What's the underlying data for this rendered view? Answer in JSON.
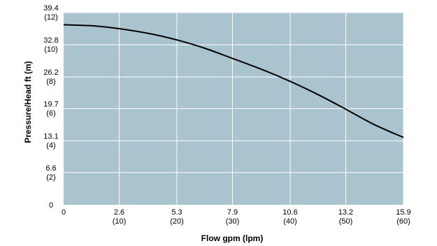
{
  "chart_data": {
    "type": "line",
    "title": "",
    "xlabel": "Flow gpm (lpm)",
    "ylabel": "Pressure/Head ft (m)",
    "x_ticks": [
      {
        "value": 0,
        "label": "0",
        "sub": ""
      },
      {
        "value": 2.6,
        "label": "2.6",
        "sub": "(10)"
      },
      {
        "value": 5.3,
        "label": "5.3",
        "sub": "(20)"
      },
      {
        "value": 7.9,
        "label": "7.9",
        "sub": "(30)"
      },
      {
        "value": 10.6,
        "label": "10.6",
        "sub": "(40)"
      },
      {
        "value": 13.2,
        "label": "13.2",
        "sub": "(50)"
      },
      {
        "value": 15.9,
        "label": "15.9",
        "sub": "(60)"
      }
    ],
    "y_ticks": [
      {
        "value": 0,
        "label": "0",
        "sub": ""
      },
      {
        "value": 6.6,
        "label": "6.6",
        "sub": "(2)"
      },
      {
        "value": 13.1,
        "label": "13.1",
        "sub": "(4)"
      },
      {
        "value": 19.7,
        "label": "19.7",
        "sub": "(6)"
      },
      {
        "value": 26.2,
        "label": "26.2",
        "sub": "(8)"
      },
      {
        "value": 32.8,
        "label": "32.8",
        "sub": "(10)"
      },
      {
        "value": 39.4,
        "label": "39.4",
        "sub": "(12)"
      }
    ],
    "xlim": [
      0,
      15.9
    ],
    "ylim": [
      0,
      39.4
    ],
    "grid": true,
    "colors": {
      "plot_background": "#a9c3cf",
      "grid": "#ffffff",
      "line": "#000000"
    },
    "series": [
      {
        "x": [
          0,
          1.3,
          2.6,
          4.0,
          5.3,
          6.6,
          7.9,
          9.3,
          10.6,
          11.9,
          13.2,
          14.5,
          15.9
        ],
        "y": [
          36.9,
          36.7,
          36.1,
          35.1,
          33.8,
          32.1,
          30.0,
          27.7,
          25.3,
          22.6,
          19.6,
          16.5,
          13.8
        ]
      }
    ]
  }
}
